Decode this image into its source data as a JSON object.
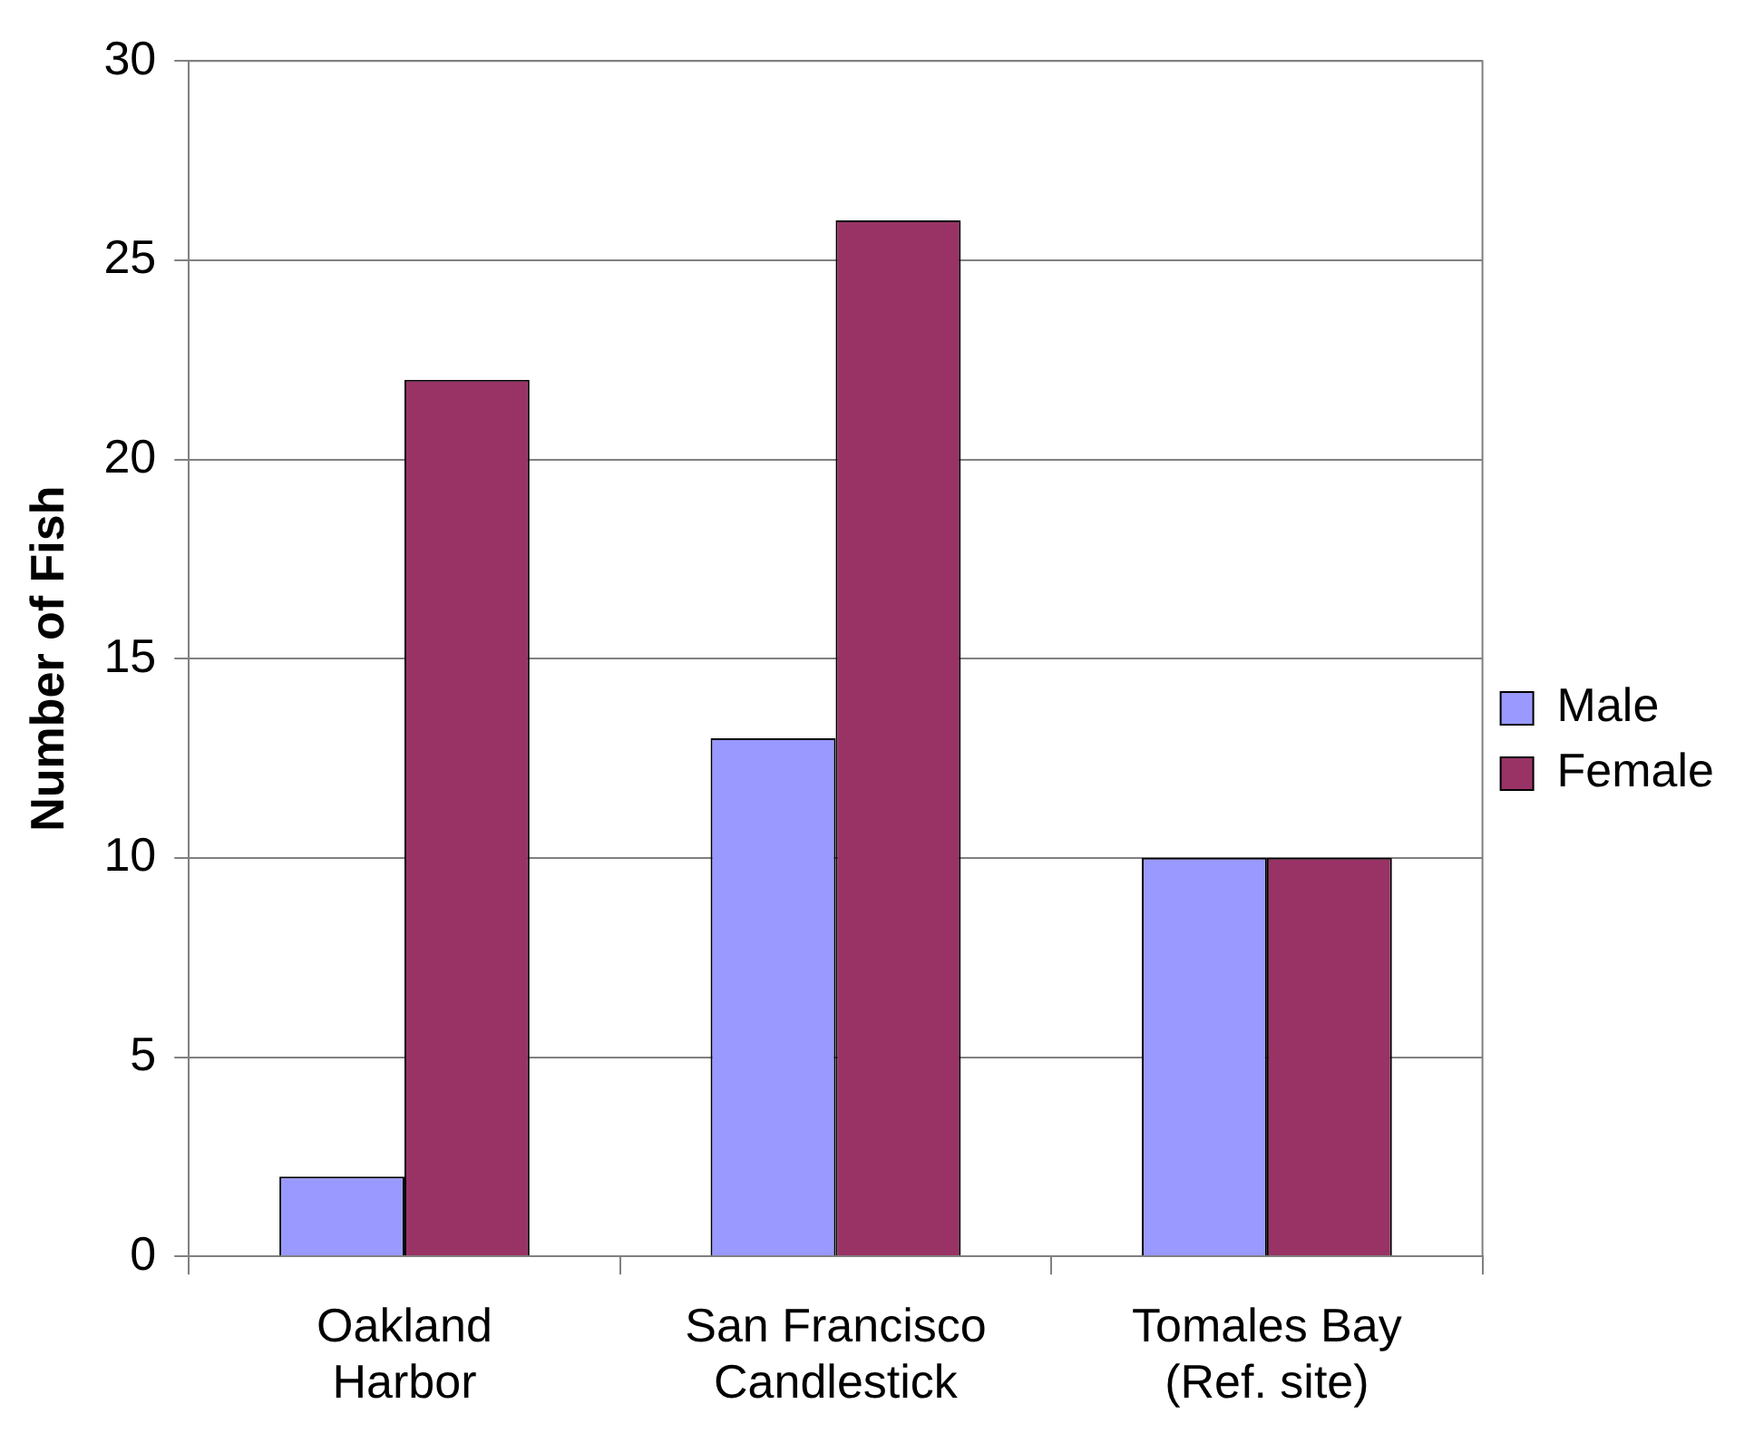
{
  "chart_data": {
    "type": "bar",
    "ylabel": "Number of Fish",
    "categories": [
      "Oakland\nHarbor",
      "San Francisco\nCandlestick",
      "Tomales Bay\n(Ref. site)"
    ],
    "series": [
      {
        "name": "Male",
        "color": "#9999ff",
        "values": [
          2,
          13,
          10
        ]
      },
      {
        "name": "Female",
        "color": "#993366",
        "values": [
          22,
          26,
          10
        ]
      }
    ],
    "ylim": [
      0,
      30
    ],
    "yticks": [
      0,
      5,
      10,
      15,
      20,
      25,
      30
    ],
    "grid": "y",
    "legend": "right"
  }
}
